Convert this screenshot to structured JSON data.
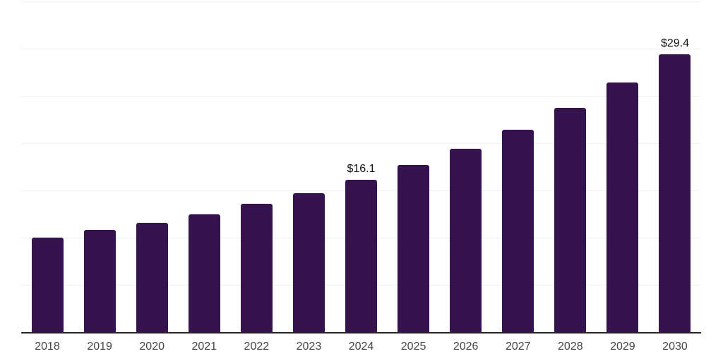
{
  "chart_data": {
    "type": "bar",
    "title": "",
    "xlabel": "",
    "ylabel": "",
    "categories": [
      "2018",
      "2019",
      "2020",
      "2021",
      "2022",
      "2023",
      "2024",
      "2025",
      "2026",
      "2027",
      "2028",
      "2029",
      "2030"
    ],
    "values": [
      10.0,
      10.8,
      11.6,
      12.5,
      13.6,
      14.7,
      16.1,
      17.7,
      19.4,
      21.4,
      23.7,
      26.4,
      29.4
    ],
    "labeled_points": [
      {
        "category": "2024",
        "label": "$16.1"
      },
      {
        "category": "2030",
        "label": "$29.4"
      }
    ],
    "ylim": [
      0,
      35
    ],
    "gridline_interval": 5,
    "grid": "horizontal-only",
    "y_tick_labels": "none",
    "legend": "none",
    "colors": {
      "bar": "#36124E",
      "gridline": "#F0F0F0",
      "axis_line": "#262626",
      "tick_label": "#454545",
      "data_label": "#111111",
      "background": "#FFFFFF"
    }
  }
}
